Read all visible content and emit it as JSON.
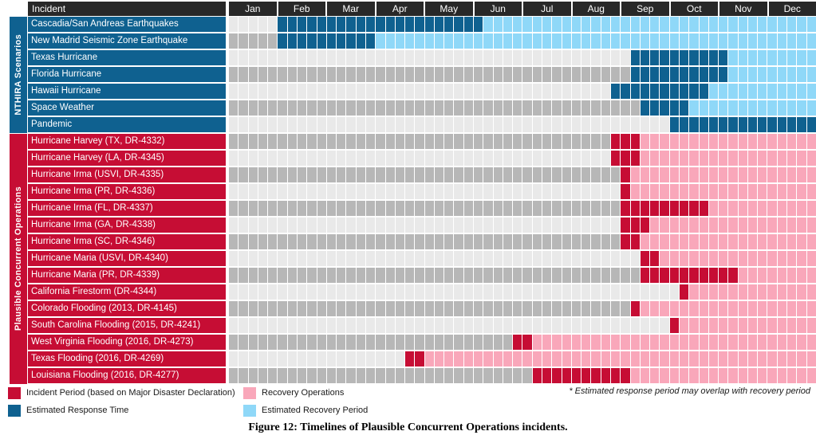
{
  "header": {
    "incident_label": "Incident"
  },
  "sections": {
    "nthira": {
      "title": "NTHIRA Scenarios"
    },
    "pco": {
      "title": "Plausible Concurrent Operations"
    }
  },
  "legend": {
    "items": [
      {
        "key": "incident",
        "label": "Incident Period (based on Major Disaster Declaration)"
      },
      {
        "key": "recovery",
        "label": "Recovery Operations"
      },
      {
        "key": "response",
        "label": "Estimated Response Time"
      },
      {
        "key": "est_recovery",
        "label": "Estimated Recovery Period"
      }
    ],
    "note": "* Estimated response period may overlap with recovery period"
  },
  "caption": "Figure 12: Timelines of Plausible Concurrent Operations incidents.",
  "colors": {
    "response": "#0f6190",
    "est_recovery": "#8fd8f8",
    "incident": "#c60d34",
    "recovery": "#f9a7ba",
    "base_light": "#e9e9e9",
    "base_dark": "#b7b7b7",
    "header_bar": "#282828",
    "nthira_label": "#0f6190",
    "pco_label": "#c60d34"
  },
  "chart_data": {
    "type": "heatmap",
    "subtype": "gantt-timeline",
    "title": "Timelines of Plausible Concurrent Operations incidents",
    "x_axis": {
      "unit": "weeks (5 cells per month)",
      "total_cells": 60,
      "months": [
        "Jan",
        "Feb",
        "Mar",
        "Apr",
        "May",
        "Jun",
        "Jul",
        "Aug",
        "Sep",
        "Oct",
        "Nov",
        "Dec"
      ]
    },
    "cell_types": {
      "response": "Estimated Response Time (dark blue)",
      "est_recovery": "Estimated Recovery Period (light blue)",
      "incident": "Incident Period based on Major Disaster Declaration (dark red)",
      "recovery": "Recovery Operations (pink)",
      "empty": "grey striped background"
    },
    "rows": [
      {
        "label": "Cascadia/San Andreas Earthquakes",
        "group": "nthira",
        "segments": [
          {
            "type": "response",
            "start": 5,
            "end": 26
          },
          {
            "type": "est_recovery",
            "start": 26,
            "end": 60
          }
        ]
      },
      {
        "label": "New Madrid Seismic Zone Earthquake",
        "group": "nthira",
        "segments": [
          {
            "type": "response",
            "start": 5,
            "end": 15
          },
          {
            "type": "est_recovery",
            "start": 15,
            "end": 60
          }
        ]
      },
      {
        "label": "Texas Hurricane",
        "group": "nthira",
        "segments": [
          {
            "type": "response",
            "start": 41,
            "end": 51
          },
          {
            "type": "est_recovery",
            "start": 51,
            "end": 60
          }
        ]
      },
      {
        "label": "Florida Hurricane",
        "group": "nthira",
        "segments": [
          {
            "type": "response",
            "start": 41,
            "end": 51
          },
          {
            "type": "est_recovery",
            "start": 51,
            "end": 60
          }
        ]
      },
      {
        "label": "Hawaii Hurricane",
        "group": "nthira",
        "segments": [
          {
            "type": "response",
            "start": 39,
            "end": 49
          },
          {
            "type": "est_recovery",
            "start": 49,
            "end": 60
          }
        ]
      },
      {
        "label": "Space Weather",
        "group": "nthira",
        "segments": [
          {
            "type": "response",
            "start": 42,
            "end": 47
          },
          {
            "type": "est_recovery",
            "start": 47,
            "end": 60
          }
        ]
      },
      {
        "label": "Pandemic",
        "group": "nthira",
        "segments": [
          {
            "type": "response",
            "start": 45,
            "end": 60
          }
        ]
      },
      {
        "label": "Hurricane Harvey (TX, DR-4332)",
        "group": "pco",
        "segments": [
          {
            "type": "incident",
            "start": 39,
            "end": 42
          },
          {
            "type": "recovery",
            "start": 42,
            "end": 60
          }
        ]
      },
      {
        "label": "Hurricane Harvey (LA, DR-4345)",
        "group": "pco",
        "segments": [
          {
            "type": "incident",
            "start": 39,
            "end": 42
          },
          {
            "type": "recovery",
            "start": 42,
            "end": 60
          }
        ]
      },
      {
        "label": "Hurricane Irma (USVI, DR-4335)",
        "group": "pco",
        "segments": [
          {
            "type": "incident",
            "start": 40,
            "end": 41
          },
          {
            "type": "recovery",
            "start": 41,
            "end": 60
          }
        ]
      },
      {
        "label": "Hurricane Irma (PR, DR-4336)",
        "group": "pco",
        "segments": [
          {
            "type": "incident",
            "start": 40,
            "end": 41
          },
          {
            "type": "recovery",
            "start": 41,
            "end": 60
          }
        ]
      },
      {
        "label": "Hurricane Irma (FL, DR-4337)",
        "group": "pco",
        "segments": [
          {
            "type": "incident",
            "start": 40,
            "end": 49
          },
          {
            "type": "recovery",
            "start": 49,
            "end": 60
          }
        ]
      },
      {
        "label": "Hurricane Irma (GA, DR-4338)",
        "group": "pco",
        "segments": [
          {
            "type": "incident",
            "start": 40,
            "end": 43
          },
          {
            "type": "recovery",
            "start": 43,
            "end": 60
          }
        ]
      },
      {
        "label": "Hurricane Irma (SC, DR-4346)",
        "group": "pco",
        "segments": [
          {
            "type": "incident",
            "start": 40,
            "end": 42
          },
          {
            "type": "recovery",
            "start": 42,
            "end": 60
          }
        ]
      },
      {
        "label": "Hurricane Maria (USVI, DR-4340)",
        "group": "pco",
        "segments": [
          {
            "type": "incident",
            "start": 42,
            "end": 44
          },
          {
            "type": "recovery",
            "start": 44,
            "end": 60
          }
        ]
      },
      {
        "label": "Hurricane Maria (PR, DR-4339)",
        "group": "pco",
        "segments": [
          {
            "type": "incident",
            "start": 42,
            "end": 52
          },
          {
            "type": "recovery",
            "start": 52,
            "end": 60
          }
        ]
      },
      {
        "label": "California Firestorm (DR-4344)",
        "group": "pco",
        "segments": [
          {
            "type": "incident",
            "start": 46,
            "end": 47
          },
          {
            "type": "recovery",
            "start": 47,
            "end": 60
          }
        ]
      },
      {
        "label": "Colorado Flooding (2013, DR-4145)",
        "group": "pco",
        "segments": [
          {
            "type": "incident",
            "start": 41,
            "end": 42
          },
          {
            "type": "recovery",
            "start": 42,
            "end": 60
          }
        ]
      },
      {
        "label": "South Carolina Flooding (2015, DR-4241)",
        "group": "pco",
        "segments": [
          {
            "type": "incident",
            "start": 45,
            "end": 46
          },
          {
            "type": "recovery",
            "start": 46,
            "end": 60
          }
        ]
      },
      {
        "label": "West Virginia Flooding (2016, DR-4273)",
        "group": "pco",
        "segments": [
          {
            "type": "incident",
            "start": 29,
            "end": 31
          },
          {
            "type": "recovery",
            "start": 31,
            "end": 60
          }
        ]
      },
      {
        "label": "Texas Flooding (2016, DR-4269)",
        "group": "pco",
        "segments": [
          {
            "type": "incident",
            "start": 18,
            "end": 20
          },
          {
            "type": "recovery",
            "start": 20,
            "end": 60
          }
        ]
      },
      {
        "label": "Louisiana Flooding (2016, DR-4277)",
        "group": "pco",
        "segments": [
          {
            "type": "incident",
            "start": 31,
            "end": 41
          },
          {
            "type": "recovery",
            "start": 41,
            "end": 60
          }
        ]
      }
    ]
  }
}
